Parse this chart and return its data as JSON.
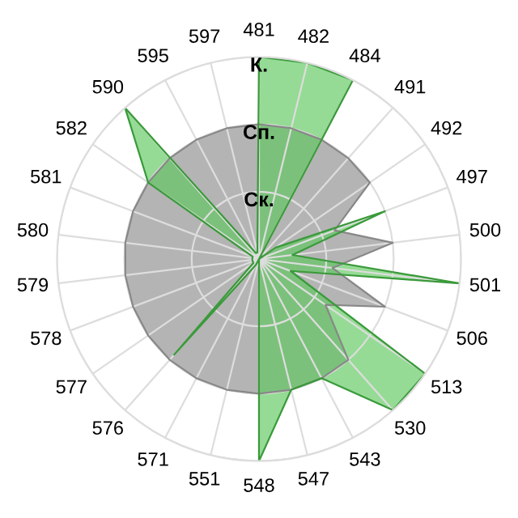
{
  "chart_data": {
    "type": "radar",
    "categories": [
      "481",
      "482",
      "484",
      "491",
      "492",
      "497",
      "500",
      "501",
      "506",
      "513",
      "530",
      "543",
      "547",
      "548",
      "551",
      "571",
      "576",
      "577",
      "578",
      "579",
      "580",
      "581",
      "582",
      "590",
      "595",
      "597"
    ],
    "series": [
      {
        "color": "#b4b4b4",
        "values": [
          2,
          2,
          2,
          2,
          2,
          1.2,
          2,
          1.1,
          2,
          1.2,
          2,
          2,
          2,
          2,
          2,
          2,
          2,
          2,
          2,
          2,
          2,
          2,
          2,
          2,
          2,
          2
        ]
      },
      {
        "color": "#5cc85c",
        "values": [
          3,
          3,
          3,
          0,
          0.3,
          2,
          0.5,
          3,
          0.5,
          3,
          3,
          2,
          2,
          3,
          0,
          0.1,
          1.9,
          0.1,
          0.1,
          0.1,
          0.1,
          0.1,
          2,
          3,
          0.1,
          0.1
        ]
      }
    ],
    "ylim": [
      0,
      3
    ],
    "yticks": [
      {
        "value": 1,
        "label": "Ск."
      },
      {
        "value": 2,
        "label": "Сп."
      },
      {
        "value": 3,
        "label": "К."
      }
    ],
    "grid": true,
    "legend": false
  }
}
